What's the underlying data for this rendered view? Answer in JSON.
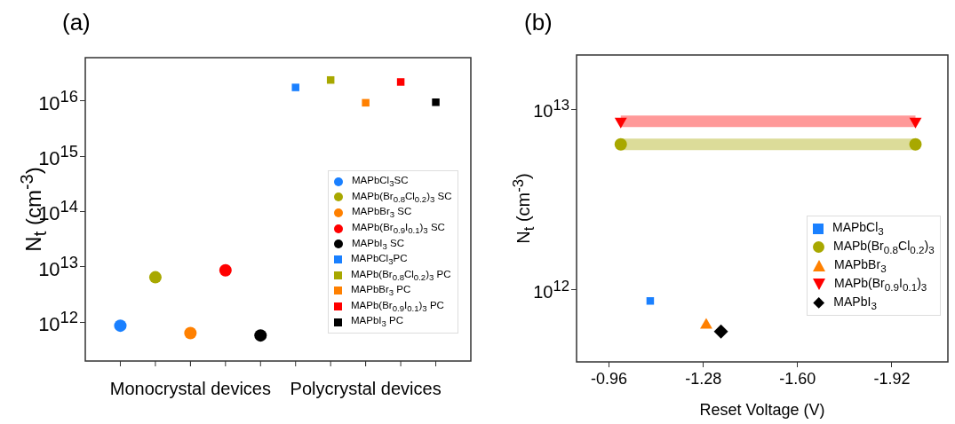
{
  "chart_data": [
    {
      "type": "scatter",
      "title": "(a)",
      "ylabel": "N$_{t}$ (cm$^{-3}$)",
      "categories": [
        "Monocrystal devices",
        "Polycrystal devices"
      ],
      "log": "y",
      "ylim": [
        200000000000.0,
        6e+16
      ],
      "yticks": [
        {
          "value": 1000000000000.0,
          "label": "10$^{12}$"
        },
        {
          "value": 10000000000000.0,
          "label": "10$^{13}$"
        },
        {
          "value": 100000000000000.0,
          "label": "10$^{14}$"
        },
        {
          "value": 1000000000000000.0,
          "label": "10$^{15}$"
        },
        {
          "value": 1e+16,
          "label": "10$^{16}$"
        }
      ],
      "legend": "right",
      "grid": false,
      "series": [
        {
          "name": "MAPbCl$_{3}$SC",
          "color": "#1a80ff",
          "marker": "circle",
          "values": [
            870000000000.0,
            null
          ]
        },
        {
          "name": "MAPb(Br$_{0.8}$Cl$_{0.2}$)$_{3}$ SC",
          "color": "#a8a800",
          "marker": "circle",
          "values": [
            6500000000000.0,
            null
          ]
        },
        {
          "name": "MAPbBr$_{3}$ SC",
          "color": "#ff8000",
          "marker": "circle",
          "values": [
            640000000000.0,
            null
          ]
        },
        {
          "name": "MAPb(Br$_{0.9}$I$_{0.1}$)$_{3}$ SC",
          "color": "#ff0000",
          "marker": "circle",
          "values": [
            8700000000000.0,
            null
          ]
        },
        {
          "name": "MAPbI$_{3}$ SC",
          "color": "#000000",
          "marker": "circle",
          "values": [
            580000000000.0,
            null
          ]
        },
        {
          "name": "MAPbCl$_{3}$PC",
          "color": "#1a80ff",
          "marker": "square",
          "values": [
            null,
            1.74e+16
          ]
        },
        {
          "name": "MAPb(Br$_{0.8}$Cl$_{0.2}$)$_{3}$ PC",
          "color": "#a8a800",
          "marker": "square",
          "values": [
            null,
            2.37e+16
          ]
        },
        {
          "name": "MAPbBr$_{3}$ PC",
          "color": "#ff8000",
          "marker": "square",
          "values": [
            null,
            9200000000000000.0
          ]
        },
        {
          "name": "MAPb(Br$_{0.9}$I$_{0.1}$)$_{3}$ PC",
          "color": "#ff0000",
          "marker": "square",
          "values": [
            null,
            2.18e+16
          ]
        },
        {
          "name": "MAPbI$_{3}$ PC",
          "color": "#000000",
          "marker": "square",
          "values": [
            null,
            9400000000000000.0
          ]
        }
      ]
    },
    {
      "type": "scatter",
      "title": "(b)",
      "xlabel": "Reset Voltage (V)",
      "ylabel": "N$_{t}$ (cm$^{-3}$)",
      "log": "y",
      "xlim": [
        -0.85,
        -2.11
      ],
      "xticks": [
        -0.96,
        -1.28,
        {
          "value": -1.6,
          "label": "-1.60"
        },
        -1.92
      ],
      "ylim": [
        400000000000.0,
        20000000000000.0
      ],
      "yticks": [
        {
          "value": 1000000000000.0,
          "label": "10$^{12}$"
        },
        {
          "value": 10000000000000.0,
          "label": "10$^{13}$"
        }
      ],
      "legend": "bottom right",
      "grid": false,
      "series": [
        {
          "name": "MAPbCl$_{3}$",
          "color": "#1a80ff",
          "marker": "square",
          "x": [
            -1.1
          ],
          "values": [
            870000000000.0
          ]
        },
        {
          "name": "MAPb(Br$_{0.8}$Cl$_{0.2}$)$_{3}$",
          "type": "line",
          "color": "#a8a800",
          "marker": "circle",
          "x": [
            -1.0,
            -2.0
          ],
          "values": [
            6400000000000.0,
            6400000000000.0
          ]
        },
        {
          "name": "MAPbBr$_{3}$",
          "color": "#ff8000",
          "marker": "triangle",
          "x": [
            -1.29
          ],
          "values": [
            640000000000.0
          ]
        },
        {
          "name": "MAPb(Br$_{0.9}$I$_{0.1}$)$_{3}$",
          "type": "line",
          "color": "#ff0000",
          "marker": "triangle-down",
          "x": [
            -1.0,
            -2.0
          ],
          "values": [
            8600000000000.0,
            8600000000000.0
          ]
        },
        {
          "name": "MAPbI$_{3}$",
          "color": "#000000",
          "marker": "diamond",
          "x": [
            -1.34
          ],
          "values": [
            590000000000.0
          ]
        }
      ]
    }
  ]
}
